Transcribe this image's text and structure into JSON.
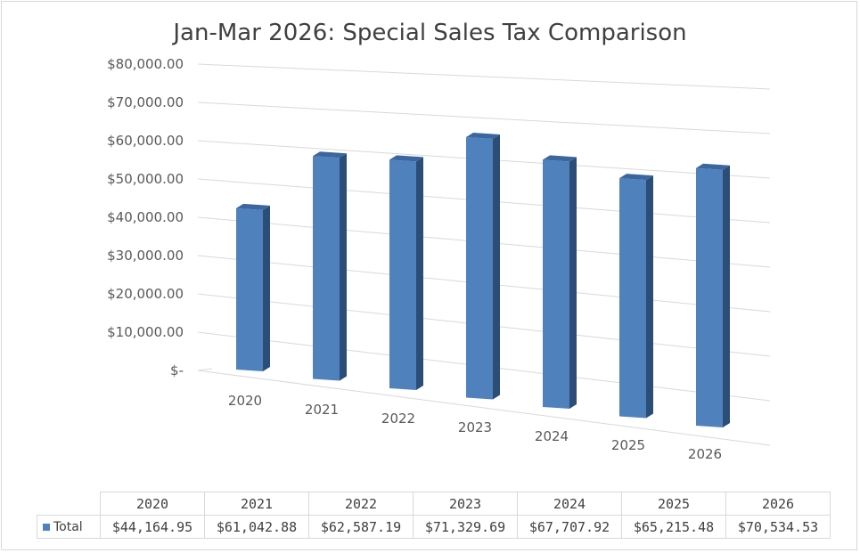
{
  "chart_data": {
    "type": "bar",
    "title": "Jan-Mar 2026: Special Sales Tax Comparison",
    "categories": [
      "2020",
      "2021",
      "2022",
      "2023",
      "2024",
      "2025",
      "2026"
    ],
    "series": [
      {
        "name": "Total",
        "values": [
          44164.95,
          61042.88,
          62587.19,
          71329.69,
          67707.92,
          65215.48,
          70534.53
        ]
      }
    ],
    "y_tick_labels": [
      "$-",
      "$10,000.00",
      "$20,000.00",
      "$30,000.00",
      "$40,000.00",
      "$50,000.00",
      "$60,000.00",
      "$70,000.00",
      "$80,000.00"
    ],
    "ylim": [
      0,
      80000
    ],
    "gridlines": true,
    "style": "3d-column",
    "data_table": {
      "row_label": "Total",
      "values": [
        "$44,164.95",
        "$61,042.88",
        "$62,587.19",
        "$71,329.69",
        "$67,707.92",
        "$65,215.48",
        "$70,534.53"
      ]
    },
    "colors": {
      "bar_front": "#4f81bd",
      "bar_side": "#2c4d75",
      "bar_top": "#3b679e",
      "grid": "#d9d9d9"
    }
  }
}
